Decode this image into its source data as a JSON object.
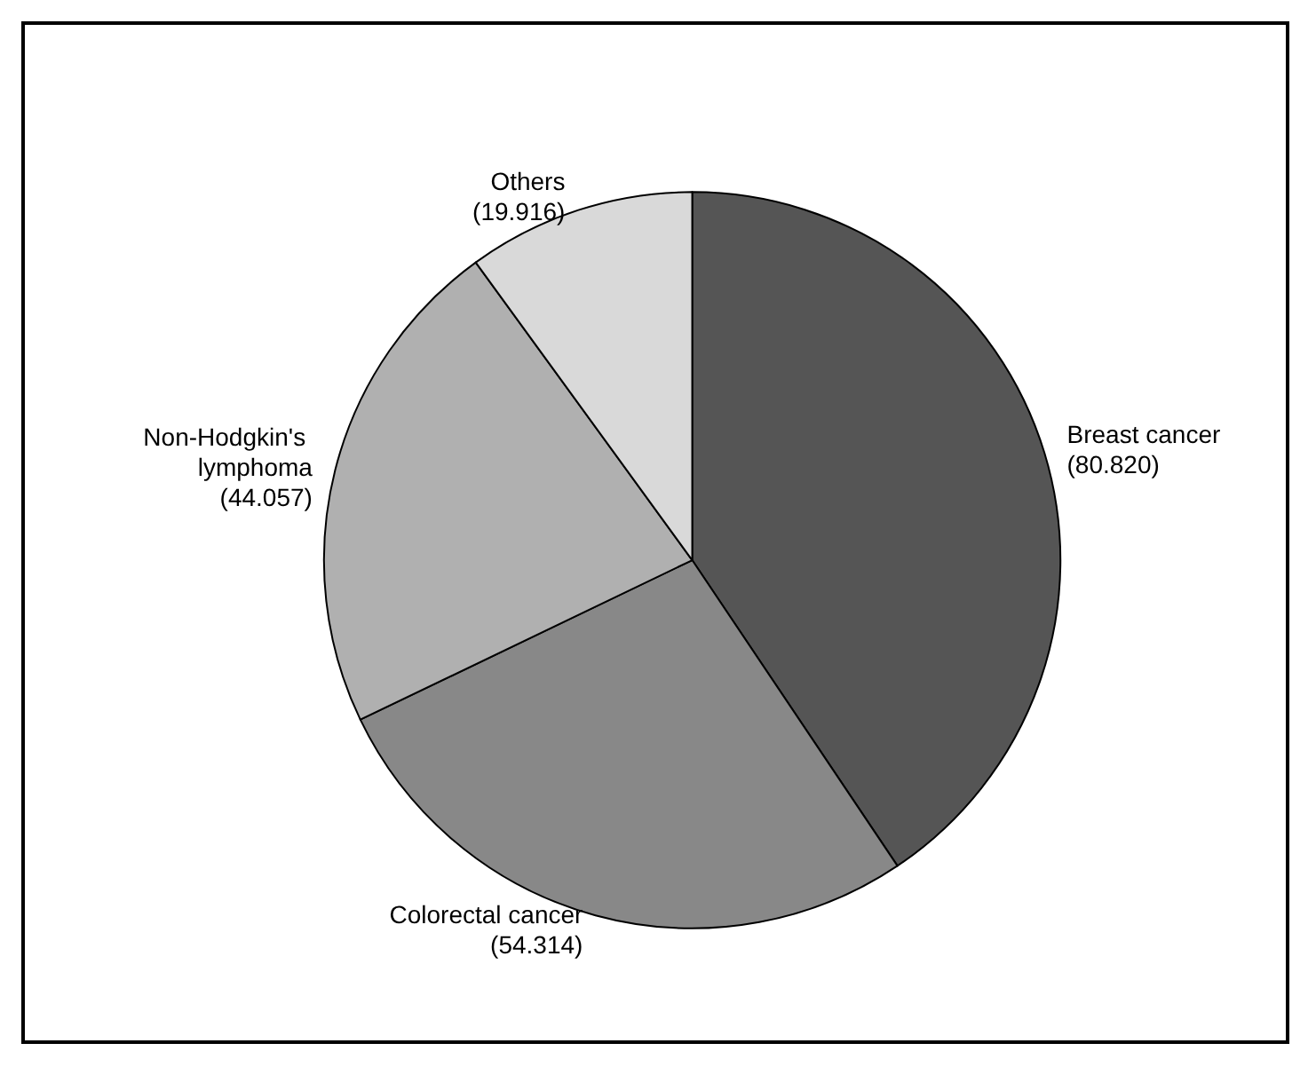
{
  "chart_data": {
    "type": "pie",
    "categories": [
      "Breast cancer",
      "Colorectal cancer",
      "Non-Hodgkin's lymphoma",
      "Others"
    ],
    "values": [
      80.82,
      54.314,
      44.057,
      19.916
    ],
    "value_labels": [
      "(80.820)",
      "(54.314)",
      "(44.057)",
      "(19.916)"
    ],
    "colors": [
      "#555555",
      "#888888",
      "#b0b0b0",
      "#d9d9d9"
    ]
  }
}
